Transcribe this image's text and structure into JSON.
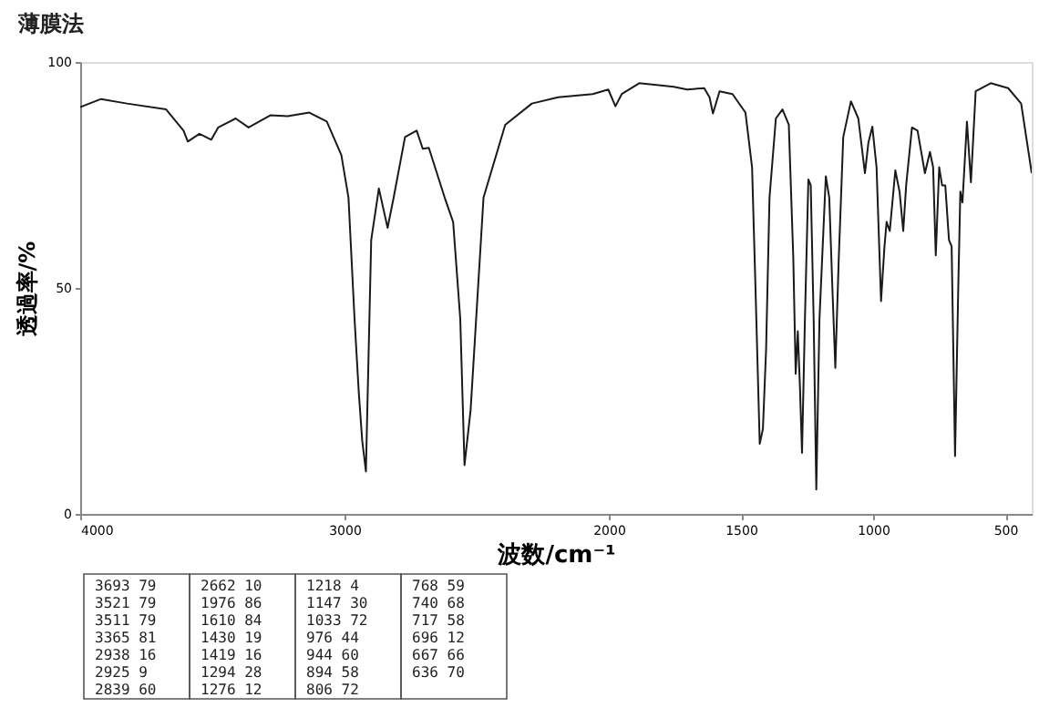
{
  "chart_data": {
    "type": "line",
    "title": "薄膜法",
    "xlabel": "波数/cm⁻¹",
    "ylabel": "透過率/%",
    "xlim": [
      4000,
      400
    ],
    "xticks": [
      4000,
      3000,
      2000,
      1500,
      1000,
      500
    ],
    "ylim": [
      0,
      100
    ],
    "yticks": [
      0,
      50,
      100
    ],
    "grid": false,
    "marker": "none",
    "line_style": "solid",
    "series": [
      {
        "color": "#1a1a1a",
        "x": [
          4000,
          3921,
          3823,
          3675,
          3609,
          3593,
          3549,
          3504,
          3478,
          3412,
          3363,
          3281,
          3215,
          3133,
          3067,
          3012,
          2985,
          2962,
          2946,
          2933,
          2919,
          2899,
          2870,
          2837,
          2814,
          2771,
          2727,
          2704,
          2681,
          2621,
          2589,
          2562,
          2546,
          2523,
          2474,
          2392,
          2291,
          2192,
          2061,
          2002,
          1975,
          1951,
          1885,
          1819,
          1754,
          1704,
          1639,
          1619,
          1606,
          1581,
          1532,
          1483,
          1458,
          1445,
          1429,
          1417,
          1405,
          1392,
          1368,
          1343,
          1319,
          1302,
          1293,
          1285,
          1277,
          1269,
          1258,
          1245,
          1236,
          1225,
          1215,
          1203,
          1179,
          1166,
          1154,
          1143,
          1130,
          1113,
          1084,
          1056,
          1031,
          1018,
          1003,
          987,
          970,
          957,
          949,
          937,
          916,
          900,
          886,
          875,
          853,
          832,
          804,
          785,
          773,
          763,
          750,
          739,
          727,
          713,
          703,
          690,
          678,
          670,
          662,
          645,
          630,
          612,
          555,
          489,
          440,
          400
        ],
        "values": [
          90.0,
          91.8,
          90.8,
          89.5,
          84.8,
          82.4,
          84.1,
          82.8,
          85.5,
          87.5,
          85.5,
          88.2,
          88.0,
          88.8,
          86.8,
          79.4,
          70.0,
          43.1,
          26.9,
          16.2,
          9.4,
          60.6,
          72.0,
          63.3,
          70.0,
          83.4,
          84.8,
          80.8,
          81.0,
          70.0,
          64.6,
          43.1,
          10.8,
          22.9,
          70.0,
          86.1,
          90.8,
          92.2,
          92.9,
          93.9,
          90.2,
          92.9,
          95.3,
          94.9,
          94.5,
          93.9,
          94.2,
          92.2,
          88.6,
          93.5,
          92.9,
          88.8,
          76.7,
          49.8,
          15.5,
          18.8,
          36.3,
          70.0,
          87.5,
          89.5,
          86.1,
          56.5,
          31.0,
          40.4,
          28.3,
          13.5,
          43.1,
          74.0,
          72.7,
          43.1,
          5.4,
          43.1,
          74.7,
          70.0,
          49.8,
          32.3,
          56.5,
          83.4,
          91.3,
          87.5,
          75.4,
          82.1,
          85.7,
          76.7,
          47.1,
          59.2,
          64.6,
          62.6,
          76.0,
          71.3,
          62.6,
          72.7,
          85.5,
          84.8,
          75.4,
          80.1,
          76.7,
          57.2,
          76.7,
          72.7,
          72.7,
          60.6,
          59.2,
          12.8,
          49.8,
          71.3,
          68.9,
          86.8,
          73.4,
          93.5,
          95.3,
          94.2,
          90.8,
          75.4
        ]
      }
    ],
    "annotations": [
      "3693  79",
      "3521  79",
      "3511  79",
      "3365  81",
      "2938  16",
      "2925   9",
      "2839  60",
      "2662  10",
      "1976  86",
      "1610  84",
      "1430  19",
      "1419  16",
      "1294  28",
      "1276  12",
      "1218   4",
      "1147  30",
      "1033  72",
      "976  44",
      "944  60",
      "894  58",
      "806  72",
      "768  59",
      "740  68",
      "717  58",
      "696  12",
      "667  66",
      "636  70"
    ]
  }
}
